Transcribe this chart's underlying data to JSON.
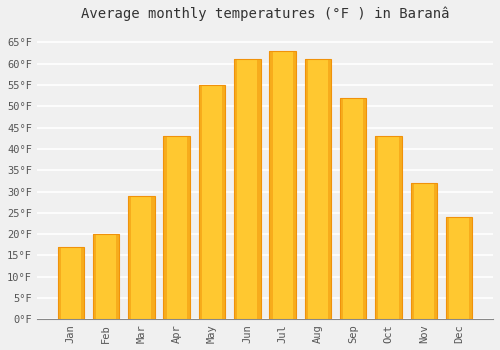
{
  "title": "Average monthly temperatures (°F ) in Baranâ",
  "months": [
    "Jan",
    "Feb",
    "Mar",
    "Apr",
    "May",
    "Jun",
    "Jul",
    "Aug",
    "Sep",
    "Oct",
    "Nov",
    "Dec"
  ],
  "values": [
    17,
    20,
    29,
    43,
    55,
    61,
    63,
    61,
    52,
    43,
    32,
    24
  ],
  "bar_color_light": "#FFC830",
  "bar_color_dark": "#F0920A",
  "ylim": [
    0,
    68
  ],
  "yticks": [
    0,
    5,
    10,
    15,
    20,
    25,
    30,
    35,
    40,
    45,
    50,
    55,
    60,
    65
  ],
  "background_color": "#f0f0f0",
  "grid_color": "#ffffff",
  "title_fontsize": 10,
  "tick_fontsize": 7.5,
  "font_family": "monospace"
}
